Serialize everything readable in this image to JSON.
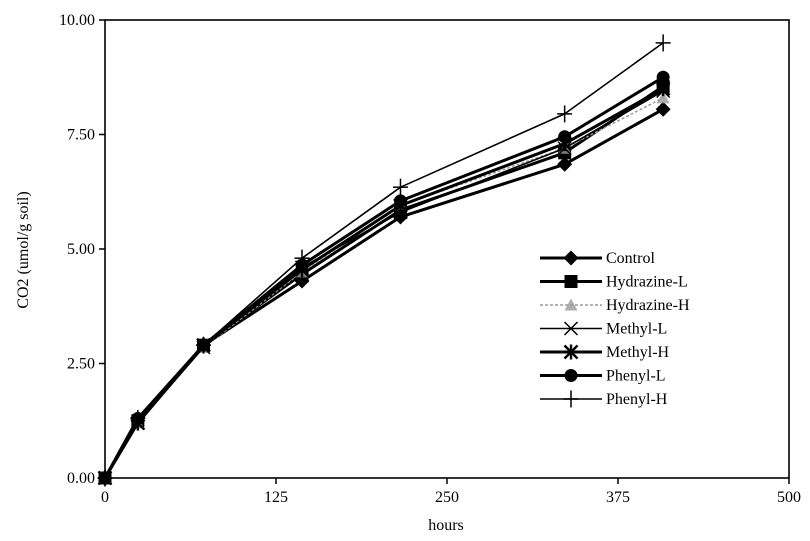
{
  "chart_data": {
    "type": "line",
    "title": "",
    "xlabel": "hours",
    "ylabel": "CO2 (umol/g soil)",
    "xlim": [
      0,
      500
    ],
    "ylim": [
      0,
      10
    ],
    "xticks": [
      "0",
      "125",
      "250",
      "375",
      "500"
    ],
    "yticks": [
      "0.00",
      "2.50",
      "5.00",
      "7.50",
      "10.00"
    ],
    "grid": false,
    "legend_position": "right-middle",
    "x": [
      0,
      24,
      72,
      144,
      216,
      336,
      408
    ],
    "series": [
      {
        "name": "Control",
        "marker": "diamond",
        "color": "#000000",
        "values": [
          0,
          1.25,
          2.9,
          4.3,
          5.7,
          6.85,
          8.05
        ]
      },
      {
        "name": "Hydrazine-L",
        "marker": "square",
        "color": "#000000",
        "values": [
          0,
          1.25,
          2.9,
          4.45,
          5.85,
          7.1,
          8.55
        ]
      },
      {
        "name": "Hydrazine-H",
        "marker": "triangle",
        "color": "#9a9a9a",
        "values": [
          0,
          1.2,
          2.85,
          4.5,
          5.95,
          7.2,
          8.3
        ]
      },
      {
        "name": "Methyl-L",
        "marker": "x",
        "color": "#000000",
        "values": [
          0,
          1.2,
          2.85,
          4.6,
          5.8,
          7.2,
          8.45
        ]
      },
      {
        "name": "Methyl-H",
        "marker": "asterisk",
        "color": "#000000",
        "values": [
          0,
          1.2,
          2.9,
          4.55,
          5.95,
          7.3,
          8.5
        ]
      },
      {
        "name": "Phenyl-L",
        "marker": "circle",
        "color": "#000000",
        "values": [
          0,
          1.3,
          2.9,
          4.65,
          6.05,
          7.45,
          8.75
        ]
      },
      {
        "name": "Phenyl-H",
        "marker": "plus",
        "color": "#000000",
        "values": [
          0,
          1.3,
          2.9,
          4.8,
          6.35,
          7.95,
          9.5
        ]
      }
    ]
  }
}
